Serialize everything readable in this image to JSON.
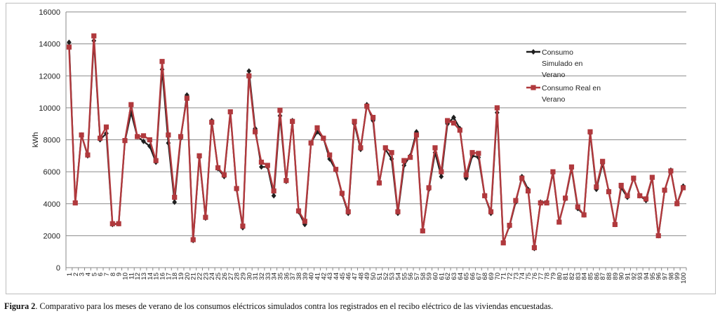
{
  "chart_data": {
    "type": "line",
    "ylabel": "kWh",
    "ylim": [
      0,
      16000
    ],
    "yticks": [
      0,
      2000,
      4000,
      6000,
      8000,
      10000,
      12000,
      14000,
      16000
    ],
    "grid": true,
    "legend_position": "top-right",
    "x": [
      1,
      2,
      3,
      4,
      5,
      6,
      7,
      8,
      9,
      10,
      11,
      12,
      13,
      14,
      15,
      16,
      17,
      18,
      19,
      20,
      21,
      22,
      23,
      24,
      25,
      26,
      27,
      28,
      29,
      30,
      31,
      32,
      33,
      34,
      35,
      36,
      37,
      38,
      39,
      40,
      41,
      42,
      43,
      44,
      45,
      46,
      47,
      48,
      49,
      50,
      51,
      52,
      53,
      54,
      55,
      56,
      57,
      58,
      59,
      60,
      61,
      62,
      63,
      64,
      65,
      66,
      67,
      68,
      69,
      70,
      71,
      72,
      73,
      74,
      75,
      76,
      77,
      78,
      79,
      80,
      81,
      82,
      83,
      84,
      85,
      86,
      87,
      88,
      89,
      90,
      91,
      92,
      93,
      94,
      95,
      96,
      97,
      98,
      99,
      100
    ],
    "series": [
      {
        "name": "Consumo Simulado en Verano",
        "color": "#1f1f1f",
        "marker": "diamond",
        "label_lines": [
          "Consumo",
          "Simulado en",
          "Verano"
        ],
        "values": [
          14100,
          4100,
          8300,
          7000,
          14200,
          8000,
          8400,
          2700,
          2750,
          7900,
          9700,
          8200,
          7900,
          7600,
          6600,
          12400,
          7800,
          4100,
          8100,
          10800,
          1700,
          6900,
          3100,
          9200,
          6200,
          5700,
          9700,
          4900,
          2500,
          12300,
          8700,
          6300,
          6300,
          4500,
          9500,
          5400,
          9200,
          3500,
          2700,
          7800,
          8500,
          8100,
          6800,
          6100,
          4600,
          3400,
          9000,
          7400,
          10200,
          9200,
          5300,
          7400,
          6800,
          3400,
          6400,
          7000,
          8500,
          2300,
          4900,
          7200,
          5700,
          9000,
          9400,
          8700,
          5600,
          7000,
          6900,
          4500,
          3400,
          9700,
          1600,
          2600,
          4100,
          5700,
          4900,
          1200,
          4100,
          4100,
          5900,
          2900,
          4300,
          6200,
          3700,
          3300,
          8400,
          4900,
          6500,
          4800,
          2700,
          5000,
          4400,
          5600,
          4500,
          4200,
          5600,
          2000,
          4800,
          6100,
          4000,
          5100
        ]
      },
      {
        "name": "Consumo Real en Verano",
        "color": "#b0393d",
        "marker": "square",
        "label_lines": [
          "Consumo Real en",
          "Verano"
        ],
        "values": [
          13800,
          4050,
          8300,
          7050,
          14500,
          8100,
          8800,
          2750,
          2750,
          7950,
          10200,
          8200,
          8250,
          8000,
          6700,
          12900,
          8300,
          4400,
          8200,
          10600,
          1750,
          7000,
          3150,
          9100,
          6250,
          5800,
          9750,
          4950,
          2600,
          12000,
          8500,
          6600,
          6400,
          4800,
          9850,
          5450,
          9150,
          3550,
          2900,
          7800,
          8750,
          8100,
          7050,
          6150,
          4650,
          3500,
          9150,
          7500,
          10100,
          9400,
          5300,
          7500,
          7200,
          3500,
          6700,
          6900,
          8300,
          2300,
          5000,
          7500,
          6000,
          9200,
          9050,
          8600,
          5800,
          7200,
          7150,
          4500,
          3500,
          10000,
          1550,
          2650,
          4200,
          5600,
          4800,
          1250,
          4050,
          4050,
          6000,
          2850,
          4350,
          6300,
          3800,
          3300,
          8500,
          5050,
          6650,
          4750,
          2700,
          5150,
          4500,
          5600,
          4500,
          4300,
          5650,
          2000,
          4850,
          6050,
          4000,
          5000
        ]
      }
    ]
  },
  "caption": {
    "label": "Figura 2",
    "text": ". Comparativo para los meses de verano de los consumos eléctricos simulados contra los registrados en el recibo eléctrico de las viviendas encuestadas."
  }
}
